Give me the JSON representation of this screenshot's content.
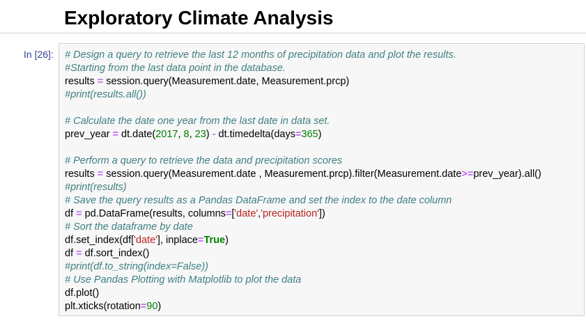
{
  "markdown": {
    "heading": "Exploratory Climate Analysis"
  },
  "code_cell": {
    "prompt": "In [26]:",
    "lines": [
      [
        {
          "t": "# Design a query to retrieve the last 12 months of precipitation data and plot the results.",
          "c": "cm"
        }
      ],
      [
        {
          "t": "#Starting from the last data point in the database.",
          "c": "cm"
        }
      ],
      [
        {
          "t": "results ",
          "c": ""
        },
        {
          "t": "=",
          "c": "op"
        },
        {
          "t": " session.query(Measurement.date, Measurement.prcp)",
          "c": ""
        }
      ],
      [
        {
          "t": "#print(results.all())",
          "c": "cm"
        }
      ],
      [],
      [
        {
          "t": "# Calculate the date one year from the last date in data set.",
          "c": "cm"
        }
      ],
      [
        {
          "t": "prev_year ",
          "c": ""
        },
        {
          "t": "=",
          "c": "op"
        },
        {
          "t": " dt.date(",
          "c": ""
        },
        {
          "t": "2017",
          "c": "num"
        },
        {
          "t": ", ",
          "c": ""
        },
        {
          "t": "8",
          "c": "num"
        },
        {
          "t": ", ",
          "c": ""
        },
        {
          "t": "23",
          "c": "num"
        },
        {
          "t": ") ",
          "c": ""
        },
        {
          "t": "-",
          "c": "op"
        },
        {
          "t": " dt.timedelta(days",
          "c": ""
        },
        {
          "t": "=",
          "c": "op"
        },
        {
          "t": "365",
          "c": "num"
        },
        {
          "t": ")",
          "c": ""
        }
      ],
      [],
      [
        {
          "t": "# Perform a query to retrieve the data and precipitation scores",
          "c": "cm"
        }
      ],
      [
        {
          "t": "results ",
          "c": ""
        },
        {
          "t": "=",
          "c": "op"
        },
        {
          "t": " session.query(Measurement.date , Measurement.prcp).filter(Measurement.date",
          "c": ""
        },
        {
          "t": ">=",
          "c": "op"
        },
        {
          "t": "prev_year).all()",
          "c": ""
        }
      ],
      [
        {
          "t": "#print(results)",
          "c": "cm"
        }
      ],
      [
        {
          "t": "# Save the query results as a Pandas DataFrame and set the index to the date column",
          "c": "cm"
        }
      ],
      [
        {
          "t": "df ",
          "c": ""
        },
        {
          "t": "=",
          "c": "op"
        },
        {
          "t": " pd.DataFrame(results, columns",
          "c": ""
        },
        {
          "t": "=",
          "c": "op"
        },
        {
          "t": "[",
          "c": ""
        },
        {
          "t": "'date'",
          "c": "str"
        },
        {
          "t": ",",
          "c": ""
        },
        {
          "t": "'precipitation'",
          "c": "str"
        },
        {
          "t": "])",
          "c": ""
        }
      ],
      [
        {
          "t": "# Sort the dataframe by date",
          "c": "cm"
        }
      ],
      [
        {
          "t": "df.set_index(df[",
          "c": ""
        },
        {
          "t": "'date'",
          "c": "str"
        },
        {
          "t": "], inplace",
          "c": ""
        },
        {
          "t": "=",
          "c": "op"
        },
        {
          "t": "True",
          "c": "kw"
        },
        {
          "t": ")",
          "c": ""
        }
      ],
      [
        {
          "t": "df ",
          "c": ""
        },
        {
          "t": "=",
          "c": "op"
        },
        {
          "t": " df.sort_index()",
          "c": ""
        }
      ],
      [
        {
          "t": "#print(df.to_string(index=False))",
          "c": "cm"
        }
      ],
      [
        {
          "t": "# Use Pandas Plotting with Matplotlib to plot the data",
          "c": "cm"
        }
      ],
      [
        {
          "t": "df.plot()",
          "c": ""
        }
      ],
      [
        {
          "t": "plt.xticks(rotation",
          "c": ""
        },
        {
          "t": "=",
          "c": "op"
        },
        {
          "t": "90",
          "c": "num"
        },
        {
          "t": ")",
          "c": ""
        }
      ]
    ]
  },
  "colors": {
    "comment": "#408080",
    "operator": "#aa22ff",
    "number": "#008000",
    "string": "#ba2121",
    "keyword": "#008000",
    "prompt": "#303f9f",
    "cell_background": "#f7f7f7"
  }
}
